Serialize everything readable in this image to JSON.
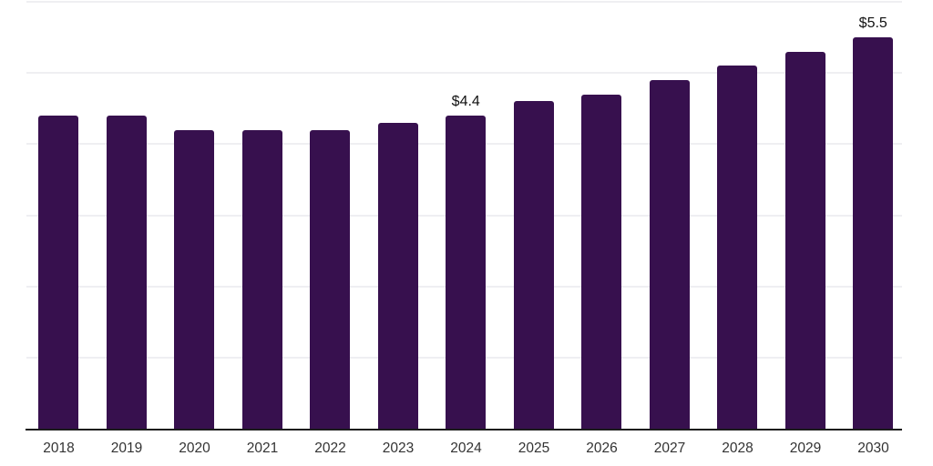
{
  "chart_data": {
    "type": "bar",
    "title": "",
    "xlabel": "",
    "ylabel": "",
    "categories": [
      "2018",
      "2019",
      "2020",
      "2021",
      "2022",
      "2023",
      "2024",
      "2025",
      "2026",
      "2027",
      "2028",
      "2029",
      "2030"
    ],
    "values": [
      4.4,
      4.4,
      4.2,
      4.2,
      4.2,
      4.3,
      4.4,
      4.6,
      4.7,
      4.9,
      5.1,
      5.3,
      5.5
    ],
    "annotations": [
      {
        "index": 6,
        "text": "$4.4"
      },
      {
        "index": 12,
        "text": "$5.5"
      }
    ],
    "ylim": [
      0,
      6
    ],
    "gridline_values": [
      1,
      2,
      3,
      4,
      5,
      6
    ],
    "grid": "horizontal-light",
    "legend_position": "none",
    "y_tick_labels_visible": false,
    "colors": {
      "bar": "#37104e",
      "axis_line": "#1c1c1c",
      "gridline": "#efeff2",
      "tick_label": "#333333",
      "value_label": "#111111",
      "background": "#ffffff"
    }
  }
}
